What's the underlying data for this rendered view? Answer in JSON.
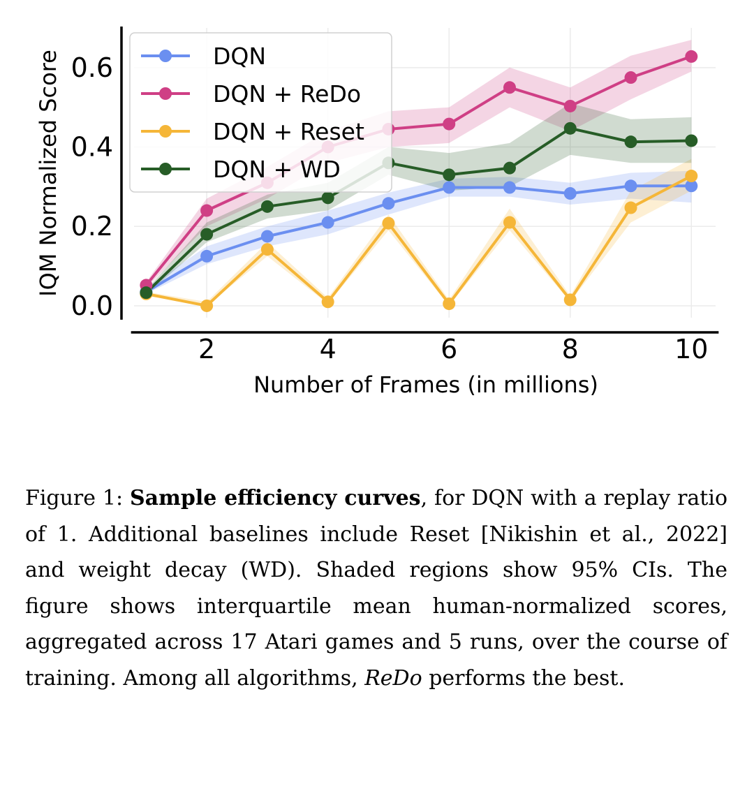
{
  "chart_data": {
    "type": "line",
    "xlabel": "Number of Frames (in millions)",
    "ylabel": "IQM Normalized Score",
    "xlim": [
      0.8,
      10.4
    ],
    "ylim": [
      -0.03,
      0.7
    ],
    "xticks": [
      2,
      4,
      6,
      8,
      10
    ],
    "yticks": [
      0.0,
      0.2,
      0.4,
      0.6
    ],
    "grid": true,
    "legend_position": "top-left",
    "x": [
      1,
      2,
      3,
      4,
      5,
      6,
      7,
      8,
      9,
      10
    ],
    "series": [
      {
        "name": "DQN",
        "color": "#6b8ff0",
        "values": [
          0.035,
          0.125,
          0.175,
          0.21,
          0.258,
          0.298,
          0.298,
          0.283,
          0.302,
          0.302
        ],
        "ci_low": [
          0.03,
          0.105,
          0.15,
          0.18,
          0.23,
          0.275,
          0.275,
          0.255,
          0.27,
          0.26
        ],
        "ci_high": [
          0.045,
          0.15,
          0.2,
          0.24,
          0.285,
          0.32,
          0.325,
          0.31,
          0.335,
          0.34
        ]
      },
      {
        "name": "DQN + ReDo",
        "color": "#cf3f85",
        "values": [
          0.052,
          0.24,
          0.31,
          0.4,
          0.445,
          0.458,
          0.55,
          0.503,
          0.575,
          0.628
        ],
        "ci_low": [
          0.045,
          0.2,
          0.27,
          0.36,
          0.4,
          0.41,
          0.5,
          0.44,
          0.52,
          0.59
        ],
        "ci_high": [
          0.06,
          0.27,
          0.35,
          0.44,
          0.49,
          0.5,
          0.6,
          0.55,
          0.63,
          0.67
        ]
      },
      {
        "name": "DQN + Reset",
        "color": "#f5b638",
        "values": [
          0.03,
          0.0,
          0.142,
          0.01,
          0.208,
          0.005,
          0.21,
          0.015,
          0.247,
          0.327
        ],
        "ci_low": [
          0.025,
          0.0,
          0.125,
          0.005,
          0.19,
          0.0,
          0.19,
          0.01,
          0.21,
          0.29
        ],
        "ci_high": [
          0.035,
          0.01,
          0.16,
          0.02,
          0.23,
          0.015,
          0.245,
          0.025,
          0.29,
          0.37
        ]
      },
      {
        "name": "DQN + WD",
        "color": "#275d27",
        "values": [
          0.033,
          0.18,
          0.25,
          0.272,
          0.36,
          0.33,
          0.347,
          0.447,
          0.413,
          0.416
        ],
        "ci_low": [
          0.028,
          0.16,
          0.22,
          0.24,
          0.33,
          0.29,
          0.3,
          0.38,
          0.36,
          0.36
        ],
        "ci_high": [
          0.04,
          0.21,
          0.28,
          0.31,
          0.4,
          0.385,
          0.41,
          0.51,
          0.47,
          0.475
        ]
      }
    ]
  },
  "caption": {
    "label": "Figure 1: ",
    "bold_title": "Sample efficiency curves",
    "text1": ", for DQN with a replay ratio of 1. Additional baselines include Reset [Nikishin et al., 2022] and weight decay (WD). Shaded regions show 95% CIs. The figure shows interquartile mean human-normalized scores, aggregated across 17 Atari games and 5 runs, over the course of training. Among all algorithms, ",
    "italic_word": "ReDo",
    "text2": " performs the best."
  }
}
